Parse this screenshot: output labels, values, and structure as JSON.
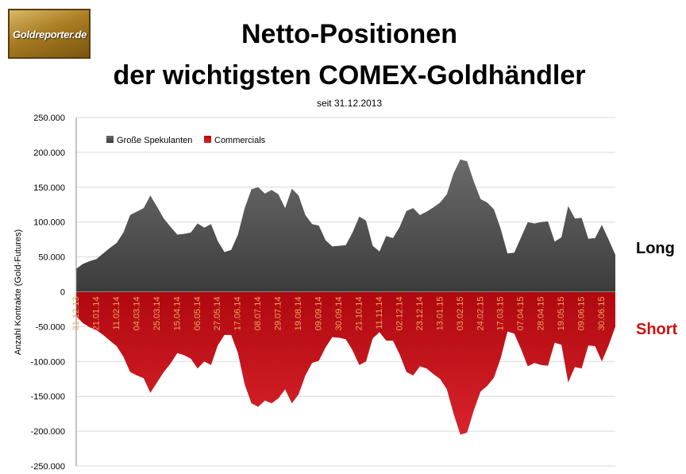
{
  "logo": {
    "text": "Goldreporter.de"
  },
  "header": {
    "title_line1": "Netto-Positionen",
    "title_line2": "der wichtigsten COMEX-Goldhändler",
    "subtitle": "seit 31.12.2013"
  },
  "side_labels": {
    "long": "Long",
    "short": "Short"
  },
  "chart_data": {
    "type": "area",
    "title": "Netto-Positionen der wichtigsten COMEX-Goldhändler",
    "subtitle": "seit 31.12.2013",
    "ylabel": "Anzahl Kontrakte (Gold-Futures)",
    "xlabel": "",
    "ylim": [
      -250000,
      250000
    ],
    "y_ticks": [
      250000,
      200000,
      150000,
      100000,
      50000,
      0,
      -50000,
      -100000,
      -150000,
      -200000,
      -250000
    ],
    "y_tick_labels": [
      "250.000",
      "200.000",
      "150.000",
      "100.000",
      "50.000",
      "0",
      "-50.000",
      "-100.000",
      "-150.000",
      "-200.000",
      "-250.000"
    ],
    "x_tick_labels": [
      "31.12.13",
      "21.01.14",
      "11.02.14",
      "04.03.14",
      "25.03.14",
      "15.04.14",
      "06.05.14",
      "27.05.14",
      "17.06.14",
      "08.07.14",
      "29.07.14",
      "19.08.14",
      "09.09.14",
      "30.09.14",
      "21.10.14",
      "11.11.14",
      "02.12.14",
      "23.12.14",
      "13.01.15",
      "03.02.15",
      "24.02.15",
      "17.03.15",
      "07.04.15",
      "28.04.15",
      "19.05.15",
      "09.06.15",
      "30.06.15"
    ],
    "x_tick_every": 3,
    "grid": true,
    "legend_position": "top-left",
    "colors": {
      "long": "#4a4a4a",
      "short": "#c8141c",
      "grid": "#d9d9d9"
    },
    "series": [
      {
        "name": "Große Spekulanten",
        "values": [
          33000,
          40000,
          44000,
          47000,
          55000,
          63000,
          70000,
          85000,
          110000,
          115000,
          120000,
          138000,
          122000,
          105000,
          93000,
          82000,
          83000,
          85000,
          98000,
          92000,
          97000,
          73000,
          57000,
          60000,
          82000,
          120000,
          147000,
          150000,
          141000,
          146000,
          140000,
          120000,
          148000,
          138000,
          110000,
          97000,
          95000,
          74000,
          65000,
          66000,
          67000,
          85000,
          108000,
          102000,
          66000,
          58000,
          80000,
          77000,
          93000,
          116000,
          120000,
          110000,
          115000,
          121000,
          128000,
          140000,
          170000,
          190000,
          187000,
          158000,
          133000,
          128000,
          118000,
          90000,
          55000,
          56000,
          78000,
          100000,
          98000,
          100000,
          101000,
          72000,
          78000,
          123000,
          105000,
          106000,
          76000,
          77000,
          96000,
          75000,
          53000
        ]
      },
      {
        "name": "Commercials",
        "values": [
          -35000,
          -45000,
          -51000,
          -55000,
          -62000,
          -70000,
          -78000,
          -93000,
          -115000,
          -120000,
          -124000,
          -145000,
          -130000,
          -115000,
          -103000,
          -88000,
          -91000,
          -96000,
          -110000,
          -100000,
          -105000,
          -77000,
          -62000,
          -62000,
          -88000,
          -133000,
          -160000,
          -165000,
          -156000,
          -160000,
          -153000,
          -140000,
          -160000,
          -147000,
          -120000,
          -102000,
          -99000,
          -80000,
          -65000,
          -66000,
          -68000,
          -84000,
          -105000,
          -100000,
          -67000,
          -58000,
          -70000,
          -70000,
          -90000,
          -115000,
          -120000,
          -107000,
          -110000,
          -118000,
          -125000,
          -140000,
          -175000,
          -205000,
          -202000,
          -170000,
          -143000,
          -135000,
          -123000,
          -95000,
          -57000,
          -60000,
          -82000,
          -107000,
          -102000,
          -105000,
          -106000,
          -73000,
          -76000,
          -130000,
          -108000,
          -110000,
          -77000,
          -78000,
          -100000,
          -77000,
          -50000
        ]
      }
    ]
  }
}
